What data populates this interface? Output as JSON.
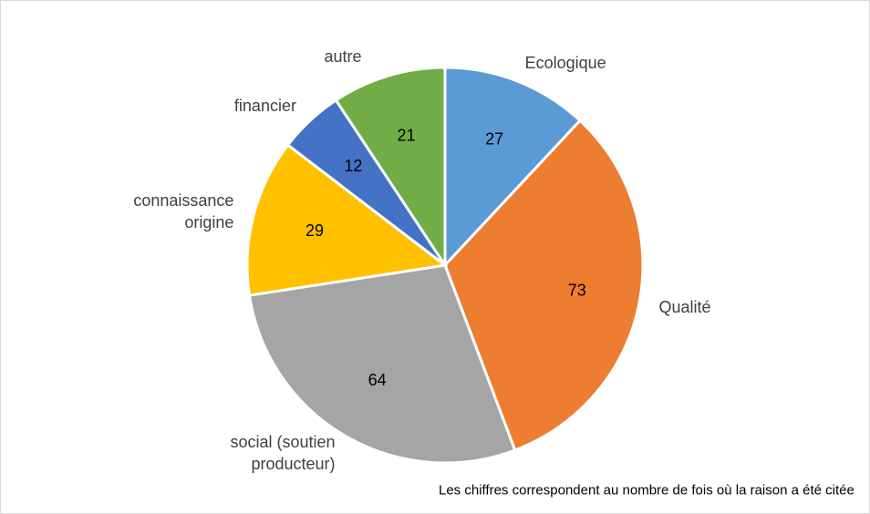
{
  "chart_data": {
    "type": "pie",
    "categories": [
      "Ecologique",
      "Qualité",
      "social (soutien producteur)",
      "connaissance origine",
      "financier",
      "autre"
    ],
    "values": [
      27,
      73,
      64,
      29,
      12,
      21
    ],
    "colors": [
      "#5b9bd5",
      "#ed7d31",
      "#a5a5a5",
      "#ffc000",
      "#4472c4",
      "#70ad47"
    ],
    "annotation": "Les chiffres correspondent au nombre de fois où la raison a été citée"
  }
}
